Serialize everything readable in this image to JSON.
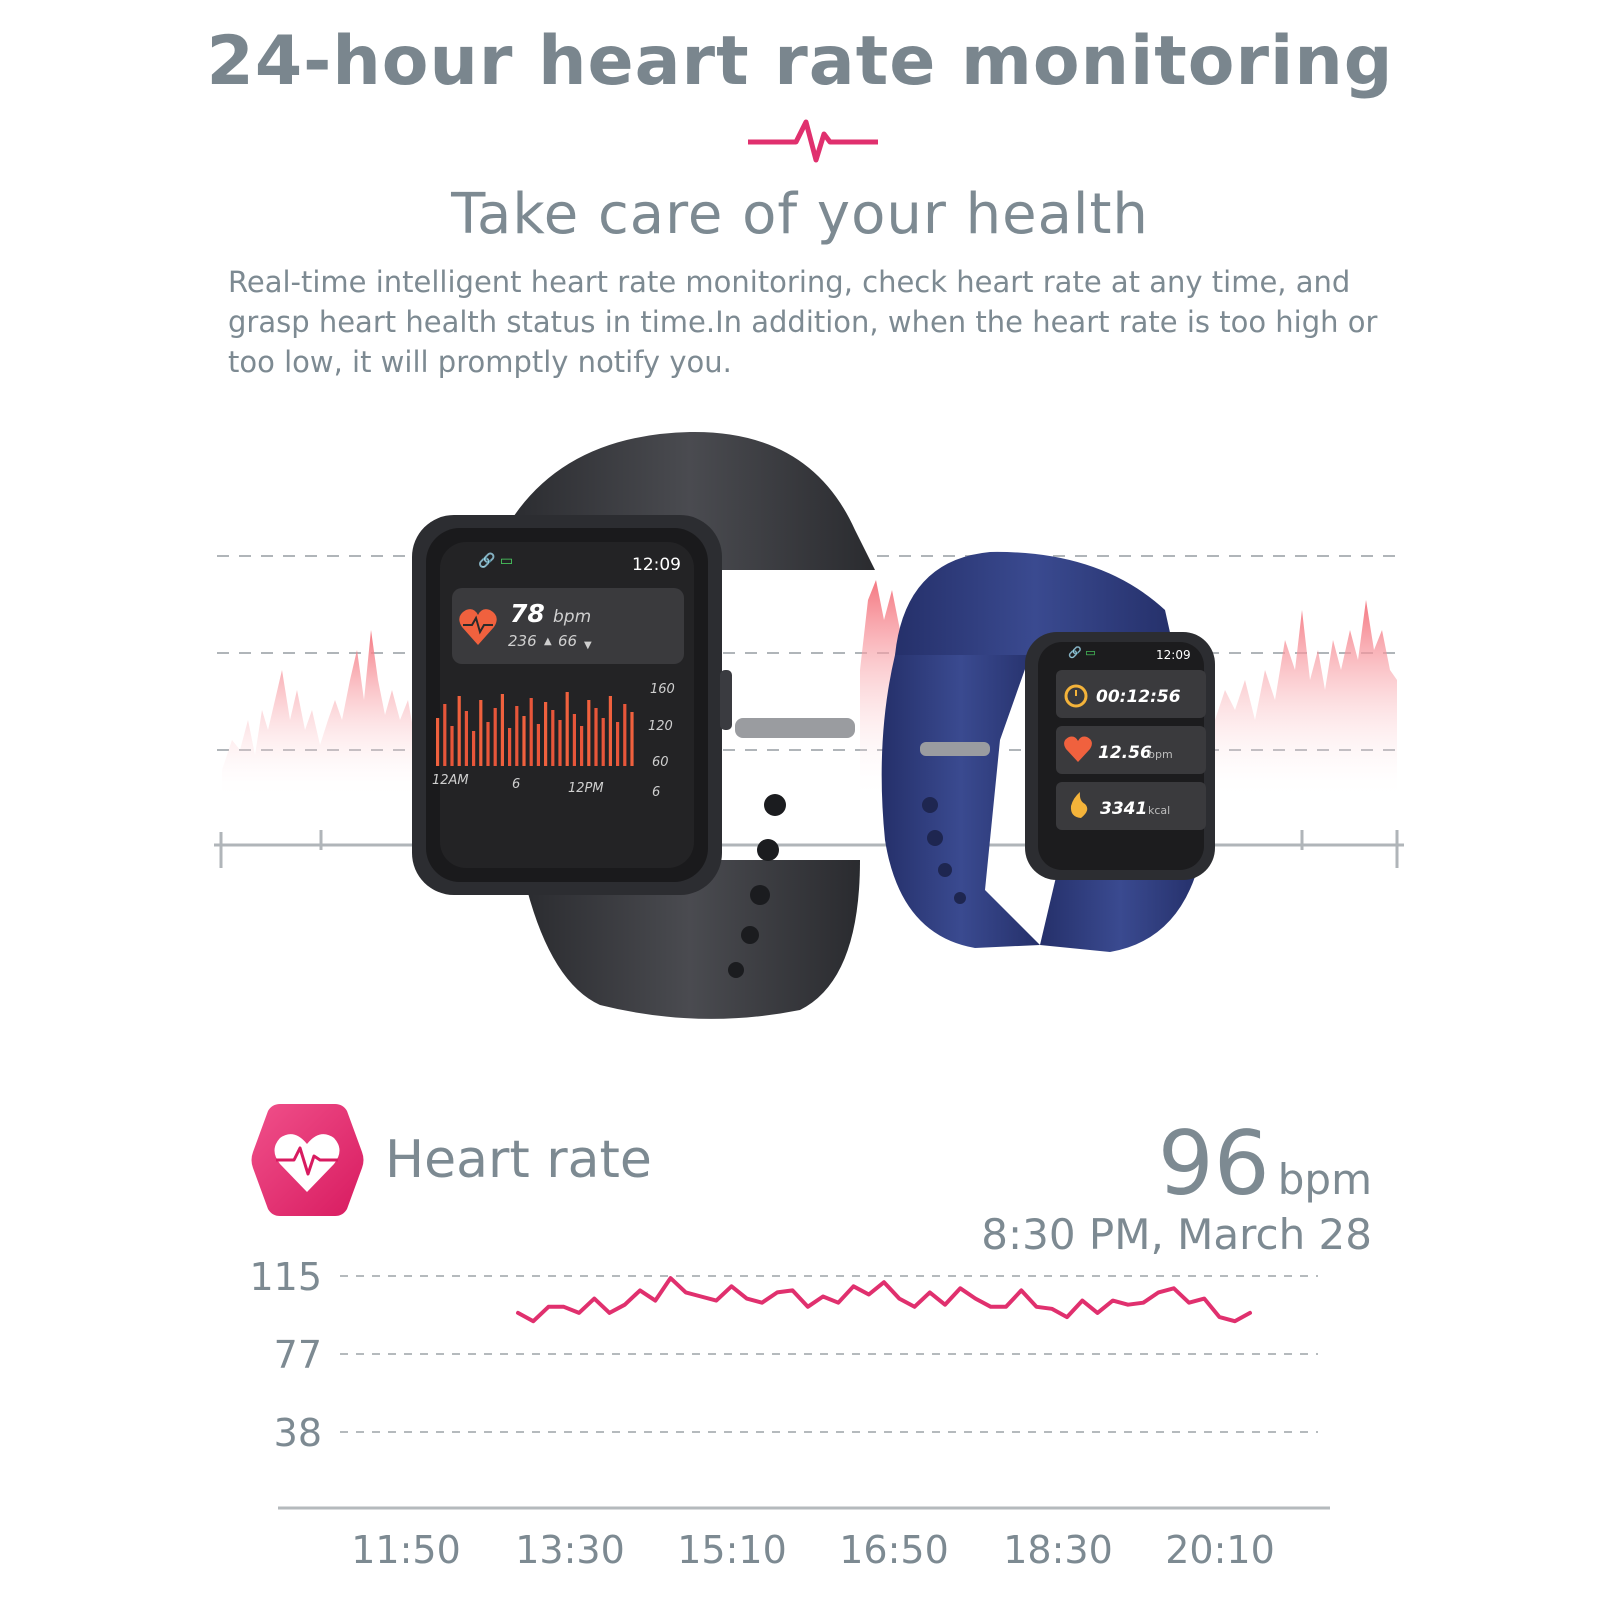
{
  "headline": "24-hour heart rate monitoring",
  "subheadline": "Take care of your health",
  "description": "Real-time intelligent heart rate monitoring, check heart rate at any time, and grasp heart health status in time.In addition, when the heart rate is too high or too low, it will promptly notify you.",
  "colors": {
    "accent": "#e0306e",
    "text": "#7d8a92",
    "watch_black": "#2b2c30",
    "watch_blue": "#2d3a78"
  },
  "watch_large": {
    "time": "12:09",
    "bpm": "78",
    "bpm_unit": "bpm",
    "max": "236",
    "min": "66",
    "y_ticks": [
      "160",
      "120",
      "60"
    ],
    "x_ticks": [
      "12AM",
      "6",
      "12PM",
      "6"
    ]
  },
  "watch_small": {
    "time": "12:09",
    "duration": "00:12:56",
    "distance": "12.56",
    "distance_unit": "bpm",
    "calories": "3341",
    "calories_unit": "kcal"
  },
  "heart_rate": {
    "label": "Heart rate",
    "value": "96",
    "unit": "bpm",
    "timestamp": "8:30 PM, March 28"
  },
  "chart_data": {
    "type": "line",
    "x_ticks": [
      "11:50",
      "13:30",
      "15:10",
      "16:50",
      "18:30",
      "20:10"
    ],
    "y_ticks": [
      115,
      77,
      38
    ],
    "ylim": [
      0,
      115
    ],
    "series": [
      {
        "color": "#e0306e",
        "values": [
          97,
          93,
          100,
          100,
          97,
          104,
          97,
          101,
          108,
          103,
          114,
          107,
          105,
          103,
          110,
          104,
          102,
          107,
          108,
          100,
          105,
          102,
          110,
          106,
          112,
          104,
          100,
          107,
          101,
          109,
          104,
          100,
          100,
          108,
          100,
          99,
          95,
          103,
          97,
          103,
          101,
          102,
          107,
          109,
          102,
          104,
          95,
          93,
          97
        ]
      }
    ]
  }
}
